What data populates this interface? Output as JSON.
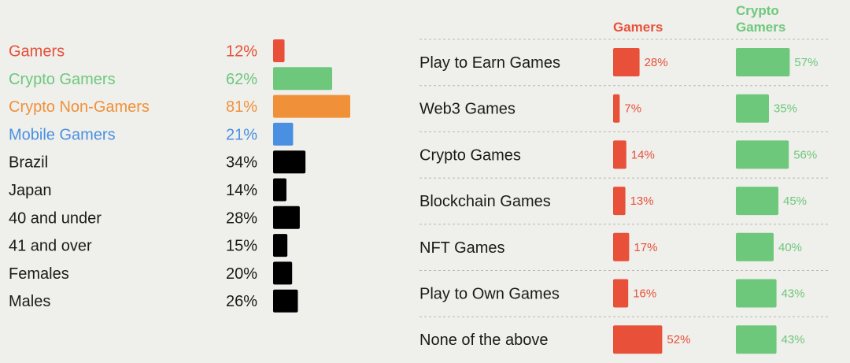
{
  "colors": {
    "gamers": "#e8503a",
    "crypto_gamers": "#6dc87c",
    "crypto_non_gamers": "#f0913a",
    "mobile_gamers": "#4a90e2",
    "neutral": "#000000"
  },
  "chart_data": [
    {
      "type": "bar",
      "orientation": "horizontal",
      "categories": [
        "Gamers",
        "Crypto Gamers",
        "Crypto Non-Gamers",
        "Mobile Gamers",
        "Brazil",
        "Japan",
        "40 and under",
        "41 and over",
        "Females",
        "Males"
      ],
      "values": [
        12,
        62,
        81,
        21,
        34,
        14,
        28,
        15,
        20,
        26
      ],
      "value_labels": [
        "12%",
        "62%",
        "81%",
        "21%",
        "34%",
        "14%",
        "28%",
        "15%",
        "20%",
        "26%"
      ],
      "bar_colors": [
        "#e8503a",
        "#6dc87c",
        "#f0913a",
        "#4a90e2",
        "#000000",
        "#000000",
        "#000000",
        "#000000",
        "#000000",
        "#000000"
      ],
      "xlim": [
        0,
        100
      ],
      "grid": false
    },
    {
      "type": "bar",
      "orientation": "horizontal",
      "categories": [
        "Play to Earn Games",
        "Web3 Games",
        "Crypto Games",
        "Blockchain Games",
        "NFT Games",
        "Play to Own Games",
        "None of the above"
      ],
      "series": [
        {
          "name": "Gamers",
          "color": "#e8503a",
          "values": [
            28,
            7,
            14,
            13,
            17,
            16,
            52
          ],
          "value_labels": [
            "28%",
            "7%",
            "14%",
            "13%",
            "17%",
            "16%",
            "52%"
          ]
        },
        {
          "name": "Crypto Gamers",
          "name_lines": [
            "Crypto",
            "Gamers"
          ],
          "color": "#6dc87c",
          "values": [
            57,
            35,
            56,
            45,
            40,
            43,
            43
          ],
          "value_labels": [
            "57%",
            "35%",
            "56%",
            "45%",
            "40%",
            "43%",
            "43%"
          ]
        }
      ],
      "xlim": [
        0,
        100
      ],
      "grid": false
    }
  ]
}
